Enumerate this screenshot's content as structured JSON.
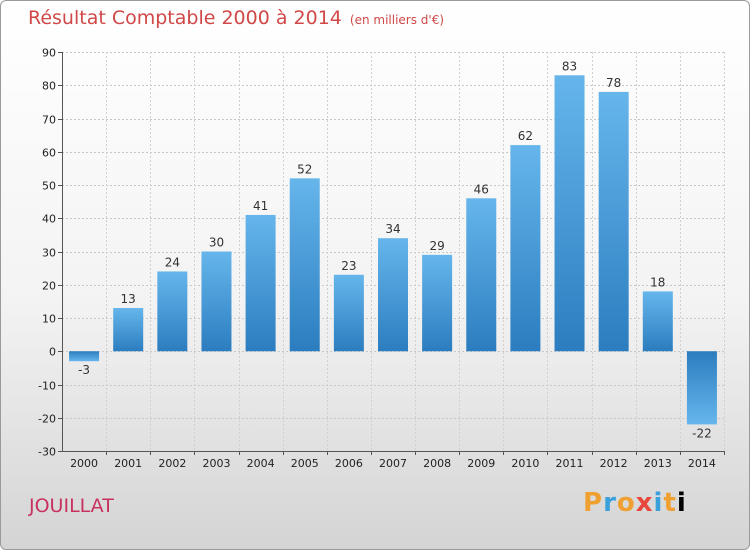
{
  "header": {
    "title": "Résultat Comptable 2000 à 2014",
    "unit": "(en milliers d'€)"
  },
  "footer": {
    "commune": "JOUILLAT",
    "logo": "Proxiti"
  },
  "colors": {
    "bar_light": "#63b3ea",
    "bar_dark": "#2c7fc0",
    "title": "#d04848",
    "commune": "#c8325e"
  },
  "chart_data": {
    "type": "bar",
    "title": "Résultat Comptable 2000 à 2014",
    "xlabel": "",
    "ylabel": "",
    "categories": [
      "2000",
      "2001",
      "2002",
      "2003",
      "2004",
      "2005",
      "2006",
      "2007",
      "2008",
      "2009",
      "2010",
      "2011",
      "2012",
      "2013",
      "2014"
    ],
    "values": [
      -3,
      13,
      24,
      30,
      41,
      52,
      23,
      34,
      29,
      46,
      62,
      83,
      78,
      18,
      -22
    ],
    "ylim": [
      -30,
      90
    ],
    "yticks": [
      -30,
      -20,
      -10,
      0,
      10,
      20,
      30,
      40,
      50,
      60,
      70,
      80,
      90
    ],
    "grid": true
  }
}
